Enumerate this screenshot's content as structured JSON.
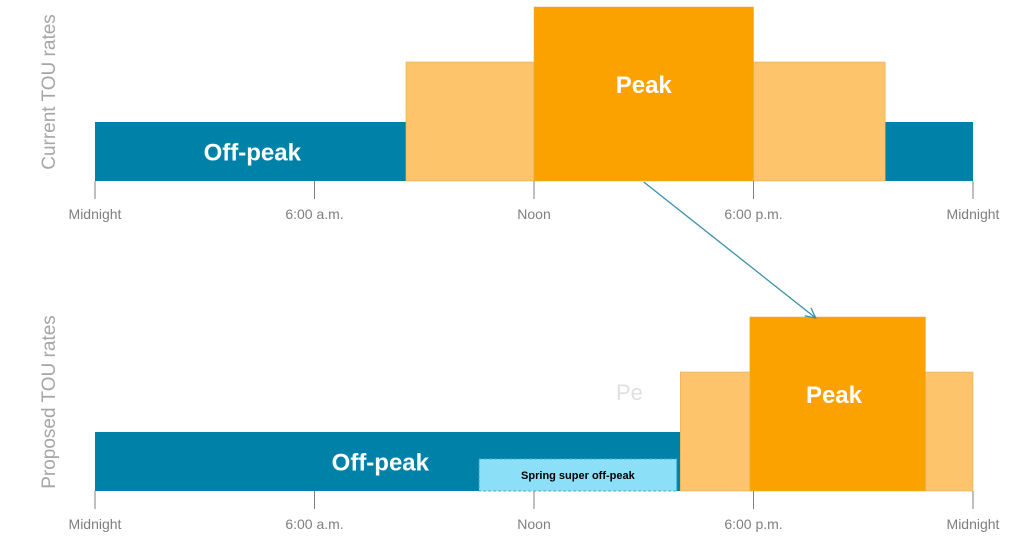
{
  "chart_data": [
    {
      "type": "bar",
      "title": "",
      "ylabel": "Current TOU rates",
      "x_range_hours": [
        0,
        24
      ],
      "tick_labels": [
        {
          "hour": 0,
          "label": "Midnight"
        },
        {
          "hour": 6,
          "label": "6:00 a.m."
        },
        {
          "hour": 12,
          "label": "Noon"
        },
        {
          "hour": 18,
          "label": "6:00 p.m."
        },
        {
          "hour": 24,
          "label": "Midnight"
        }
      ],
      "periods": [
        {
          "start_hour": 0,
          "end_hour": 24,
          "level": 1,
          "color": "#0082a8",
          "label": "Off-peak",
          "label_hour": 4.3,
          "label_size": 24
        },
        {
          "start_hour": 8.5,
          "end_hour": 12,
          "level": 2,
          "color": "#fdc46c",
          "label": ""
        },
        {
          "start_hour": 18,
          "end_hour": 21.6,
          "level": 2,
          "color": "#fdc46c",
          "label": ""
        },
        {
          "start_hour": 12,
          "end_hour": 18,
          "level": 3,
          "color": "#fba100",
          "label": "Peak",
          "label_hour": 15,
          "label_size": 24
        }
      ]
    },
    {
      "type": "bar",
      "title": "",
      "ylabel": "Proposed TOU rates",
      "x_range_hours": [
        0,
        24
      ],
      "tick_labels": [
        {
          "hour": 0,
          "label": "Midnight"
        },
        {
          "hour": 6,
          "label": "6:00 a.m."
        },
        {
          "hour": 12,
          "label": "Noon"
        },
        {
          "hour": 18,
          "label": "6:00 p.m."
        },
        {
          "hour": 24,
          "label": "Midnight"
        }
      ],
      "periods": [
        {
          "start_hour": 0,
          "end_hour": 16,
          "level": 1,
          "color": "#0082a8",
          "label": "Off-peak",
          "label_hour": 7.8,
          "label_size": 24
        },
        {
          "start_hour": 16,
          "end_hour": 17.9,
          "level": 2,
          "color": "#fdc46c",
          "label": ""
        },
        {
          "start_hour": 22.7,
          "end_hour": 24,
          "level": 2,
          "color": "#fdc46c",
          "label": ""
        },
        {
          "start_hour": 17.9,
          "end_hour": 22.7,
          "level": 3,
          "color": "#fba100",
          "label": "Peak",
          "label_hour": 20.2,
          "label_size": 24
        }
      ],
      "overlays": {
        "super_off_peak": {
          "start_hour": 10.5,
          "end_hour": 15.9,
          "label": "Spring super off-peak",
          "fill": "#8be0f7",
          "stroke": "#4aa8d0"
        },
        "ghost_text": "Pe"
      }
    }
  ],
  "annotation_arrow": {
    "from_chart": 0,
    "from_hour": 15,
    "to_chart": 1,
    "to_hour": 19.7,
    "color": "#3a8fa9"
  }
}
